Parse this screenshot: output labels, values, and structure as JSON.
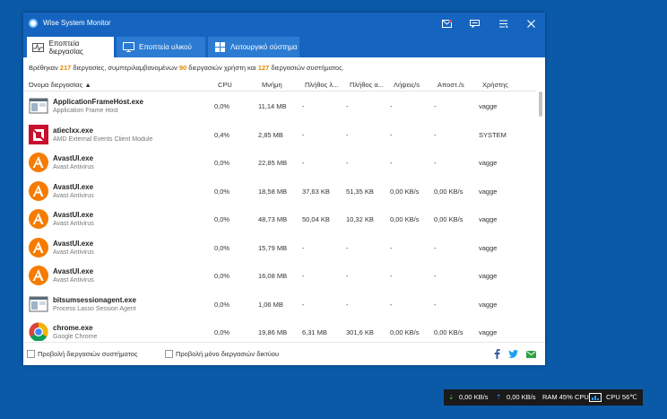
{
  "window": {
    "title": "Wise System Monitor",
    "controls": [
      "mail-icon",
      "chat-icon",
      "menu-icon",
      "close-icon"
    ]
  },
  "tabs": [
    {
      "label": "Εποπτεία διεργασίας",
      "icon": "process-chart-icon",
      "active": true
    },
    {
      "label": "Εποπτεία υλικού",
      "icon": "monitor-icon",
      "active": false
    },
    {
      "label": "Λειτουργικό σύστημα",
      "icon": "windows-logo-icon",
      "active": false
    }
  ],
  "summary": {
    "found": "Βρέθηκαν",
    "count_total": "217",
    "text1": "διεργασίες, συμπεριλαμβανομένων",
    "count_user": "90",
    "text2": "διεργασιών χρήστη και",
    "count_system": "127",
    "text3": "διεργασιών συστήματος."
  },
  "columns": {
    "name": "Όνομα διεργασίας ▲",
    "cpu": "CPU",
    "memory": "Μνήμη",
    "threads": "Πλήθος λ...",
    "handles": "Πλήθος α...",
    "recv": "Λήψεις/s",
    "send": "Αποστ./s",
    "user": "Χρήστης"
  },
  "processes": [
    {
      "name": "ApplicationFrameHost.exe",
      "desc": "Application Frame Host",
      "icon": "app-window-icon",
      "cpu": "0,0%",
      "mem": "11,14 MB",
      "threads": "-",
      "handles": "-",
      "recv": "-",
      "send": "-",
      "user": "vagge"
    },
    {
      "name": "atieclxx.exe",
      "desc": "AMD External Events Client Module",
      "icon": "amd-logo-icon",
      "cpu": "0,4%",
      "mem": "2,85 MB",
      "threads": "-",
      "handles": "-",
      "recv": "-",
      "send": "-",
      "user": "SYSTEM"
    },
    {
      "name": "AvastUI.exe",
      "desc": "Avast Antivirus",
      "icon": "avast-logo-icon",
      "cpu": "0,0%",
      "mem": "22,85 MB",
      "threads": "-",
      "handles": "-",
      "recv": "-",
      "send": "-",
      "user": "vagge"
    },
    {
      "name": "AvastUI.exe",
      "desc": "Avast Antivirus",
      "icon": "avast-logo-icon",
      "cpu": "0,0%",
      "mem": "18,58 MB",
      "threads": "37,63 KB",
      "handles": "51,35 KB",
      "recv": "0,00 KB/s",
      "send": "0,00 KB/s",
      "user": "vagge"
    },
    {
      "name": "AvastUI.exe",
      "desc": "Avast Antivirus",
      "icon": "avast-logo-icon",
      "cpu": "0,0%",
      "mem": "48,73 MB",
      "threads": "50,04 KB",
      "handles": "10,32 KB",
      "recv": "0,00 KB/s",
      "send": "0,00 KB/s",
      "user": "vagge"
    },
    {
      "name": "AvastUI.exe",
      "desc": "Avast Antivirus",
      "icon": "avast-logo-icon",
      "cpu": "0,0%",
      "mem": "15,79 MB",
      "threads": "-",
      "handles": "-",
      "recv": "-",
      "send": "-",
      "user": "vagge"
    },
    {
      "name": "AvastUI.exe",
      "desc": "Avast Antivirus",
      "icon": "avast-logo-icon",
      "cpu": "0,0%",
      "mem": "16,08 MB",
      "threads": "-",
      "handles": "-",
      "recv": "-",
      "send": "-",
      "user": "vagge"
    },
    {
      "name": "bitsumsessionagent.exe",
      "desc": "Process Lasso Session Agent",
      "icon": "app-window-icon",
      "cpu": "0,0%",
      "mem": "1,06 MB",
      "threads": "-",
      "handles": "-",
      "recv": "-",
      "send": "-",
      "user": "vagge"
    },
    {
      "name": "chrome.exe",
      "desc": "Google Chrome",
      "icon": "chrome-logo-icon",
      "cpu": "0,0%",
      "mem": "19,86 MB",
      "threads": "6,31 MB",
      "handles": "301,6 KB",
      "recv": "0,00 KB/s",
      "send": "0,00 KB/s",
      "user": "vagge"
    }
  ],
  "footer": {
    "show_system": "Προβολή διεργασιών συστήματος",
    "show_network": "Προβολή μόνο διεργασιών δικτύου",
    "share_icons": [
      "facebook-icon",
      "twitter-icon",
      "email-icon"
    ]
  },
  "tray": {
    "down_arrow": "⇣",
    "down": "0,00 KB/s",
    "up_arrow": "⇡",
    "up": "0,00 KB/s",
    "ram": "RAM 45%",
    "cpu": "CPU",
    "cpu_temp": "CPU 56℃"
  }
}
